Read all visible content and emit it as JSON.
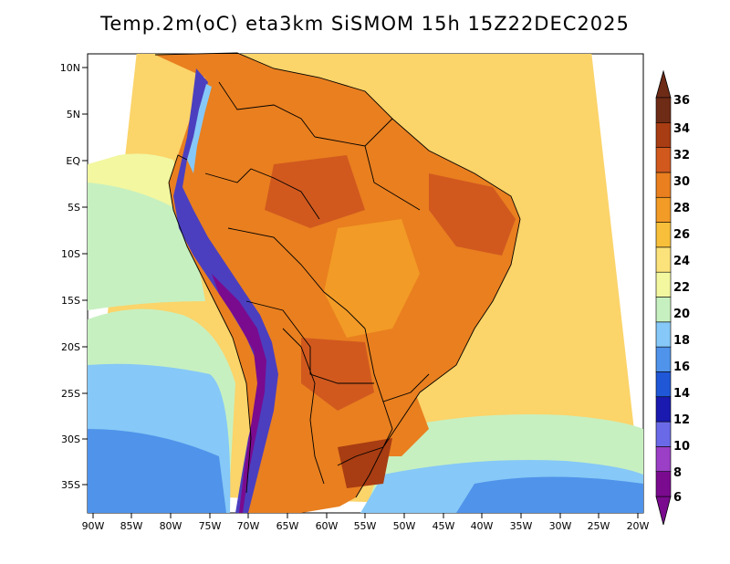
{
  "title": "Temp.2m(oC) eta3km SiSMOM 15h 15Z22DEC2025",
  "lat_labels": [
    "10N",
    "5N",
    "EQ",
    "5S",
    "10S",
    "15S",
    "20S",
    "25S",
    "30S",
    "35S"
  ],
  "lon_labels": [
    "90W",
    "85W",
    "80W",
    "75W",
    "70W",
    "65W",
    "60W",
    "55W",
    "50W",
    "45W",
    "40W",
    "35W",
    "30W",
    "25W",
    "20W"
  ],
  "colorbar": {
    "labels": [
      "6",
      "8",
      "10",
      "12",
      "14",
      "16",
      "18",
      "20",
      "22",
      "24",
      "26",
      "28",
      "30",
      "32",
      "34",
      "36"
    ],
    "colors": [
      "#7a0b8f",
      "#9a3fc6",
      "#6a6ae8",
      "#1a1ab0",
      "#1f57d6",
      "#4f93ea",
      "#86c8f7",
      "#c7f0c0",
      "#f2f7a0",
      "#fbe27a",
      "#f7bf3a",
      "#f29b26",
      "#e97f1f",
      "#d1591e",
      "#a83c12",
      "#6e2b16"
    ]
  },
  "colors": {
    "ocean_far": "#fbd46a",
    "ocean_cool": "#86c8f7",
    "land_hot": "#e97f1f",
    "andes_cold": "#4b3fbf",
    "border": "#000000"
  }
}
